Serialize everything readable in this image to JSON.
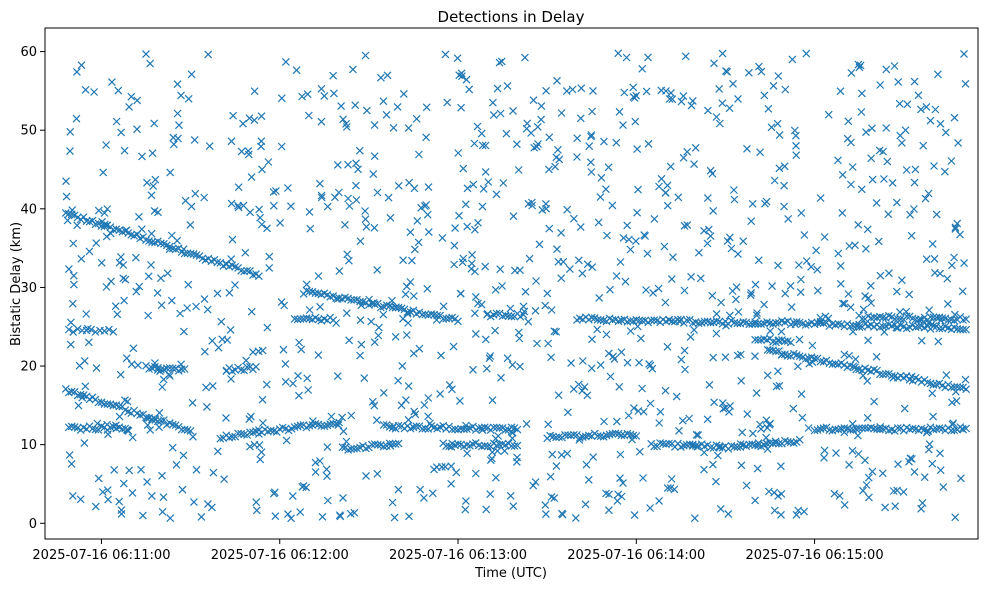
{
  "chart_data": {
    "type": "scatter",
    "title": "Detections in Delay",
    "xlabel": "Time (UTC)",
    "ylabel": "Bistatic Delay (km)",
    "marker": "x",
    "color": "#1f77b4",
    "grid": false,
    "legend": "none",
    "xlim": [
      "2025-07-16 06:10:41",
      "2025-07-16 06:15:55"
    ],
    "ylim": [
      -2.0,
      63.0
    ],
    "x_ticks": [
      {
        "value": "2025-07-16 06:11:00",
        "label": "2025-07-16 06:11:00"
      },
      {
        "value": "2025-07-16 06:12:00",
        "label": "2025-07-16 06:12:00"
      },
      {
        "value": "2025-07-16 06:13:00",
        "label": "2025-07-16 06:13:00"
      },
      {
        "value": "2025-07-16 06:14:00",
        "label": "2025-07-16 06:14:00"
      },
      {
        "value": "2025-07-16 06:15:00",
        "label": "2025-07-16 06:15:00"
      }
    ],
    "y_ticks": [
      {
        "value": 0,
        "label": "0"
      },
      {
        "value": 10,
        "label": "10"
      },
      {
        "value": 20,
        "label": "20"
      },
      {
        "value": 30,
        "label": "30"
      },
      {
        "value": 40,
        "label": "40"
      },
      {
        "value": 50,
        "label": "50"
      },
      {
        "value": 60,
        "label": "60"
      }
    ],
    "tracks": [
      {
        "start": "2025-07-16 06:10:48",
        "end": "2025-07-16 06:11:53",
        "y_start": 39.5,
        "y_end": 31.5,
        "step_s": 1
      },
      {
        "start": "2025-07-16 06:12:09",
        "end": "2025-07-16 06:13:00",
        "y_start": 29.5,
        "y_end": 25.8,
        "step_s": 1
      },
      {
        "start": "2025-07-16 06:14:45",
        "end": "2025-07-16 06:15:51",
        "y_start": 22.0,
        "y_end": 17.0,
        "step_s": 1
      },
      {
        "start": "2025-07-16 06:10:48",
        "end": "2025-07-16 06:11:30",
        "y_start": 16.9,
        "y_end": 11.8,
        "step_s": 1
      },
      {
        "start": "2025-07-16 06:11:40",
        "end": "2025-07-16 06:12:20",
        "y_start": 11.0,
        "y_end": 12.8,
        "step_s": 1
      },
      {
        "start": "2025-07-16 06:12:22",
        "end": "2025-07-16 06:12:40",
        "y_start": 9.5,
        "y_end": 10.1,
        "step_s": 1
      },
      {
        "start": "2025-07-16 06:12:35",
        "end": "2025-07-16 06:13:20",
        "y_start": 12.3,
        "y_end": 12.0,
        "step_s": 1
      },
      {
        "start": "2025-07-16 06:12:55",
        "end": "2025-07-16 06:13:20",
        "y_start": 10.0,
        "y_end": 10.0,
        "step_s": 1
      },
      {
        "start": "2025-07-16 06:13:30",
        "end": "2025-07-16 06:14:00",
        "y_start": 11.0,
        "y_end": 11.3,
        "step_s": 1
      },
      {
        "start": "2025-07-16 06:14:05",
        "end": "2025-07-16 06:14:28",
        "y_start": 10.0,
        "y_end": 9.8,
        "step_s": 1
      },
      {
        "start": "2025-07-16 06:14:28",
        "end": "2025-07-16 06:14:55",
        "y_start": 9.6,
        "y_end": 10.4,
        "step_s": 1
      },
      {
        "start": "2025-07-16 06:15:00",
        "end": "2025-07-16 06:15:51",
        "y_start": 12.0,
        "y_end": 12.0,
        "step_s": 1
      },
      {
        "start": "2025-07-16 06:10:49",
        "end": "2025-07-16 06:11:08",
        "y_start": 12.1,
        "y_end": 12.1,
        "step_s": 1
      },
      {
        "start": "2025-07-16 06:13:40",
        "end": "2025-07-16 06:14:40",
        "y_start": 26.0,
        "y_end": 25.5,
        "step_s": 1
      },
      {
        "start": "2025-07-16 06:14:40",
        "end": "2025-07-16 06:15:51",
        "y_start": 25.6,
        "y_end": 24.8,
        "step_s": 1
      },
      {
        "start": "2025-07-16 06:15:15",
        "end": "2025-07-16 06:15:51",
        "y_start": 26.2,
        "y_end": 26.0,
        "step_s": 1
      },
      {
        "start": "2025-07-16 06:11:15",
        "end": "2025-07-16 06:11:28",
        "y_start": 19.8,
        "y_end": 19.4,
        "step_s": 1
      },
      {
        "start": "2025-07-16 06:11:42",
        "end": "2025-07-16 06:11:52",
        "y_start": 19.5,
        "y_end": 19.8,
        "step_s": 1
      },
      {
        "start": "2025-07-16 06:12:05",
        "end": "2025-07-16 06:12:18",
        "y_start": 26.0,
        "y_end": 26.0,
        "step_s": 1
      },
      {
        "start": "2025-07-16 06:13:10",
        "end": "2025-07-16 06:13:22",
        "y_start": 26.5,
        "y_end": 26.5,
        "step_s": 1
      },
      {
        "start": "2025-07-16 06:10:49",
        "end": "2025-07-16 06:11:05",
        "y_start": 24.5,
        "y_end": 24.5,
        "step_s": 1.5
      },
      {
        "start": "2025-07-16 06:14:40",
        "end": "2025-07-16 06:14:52",
        "y_start": 23.5,
        "y_end": 23.0,
        "step_s": 1
      }
    ],
    "clutter": {
      "count": 1150,
      "x_range": [
        "2025-07-16 06:10:48",
        "2025-07-16 06:15:51"
      ],
      "y_range": [
        0.5,
        59.8
      ]
    }
  }
}
